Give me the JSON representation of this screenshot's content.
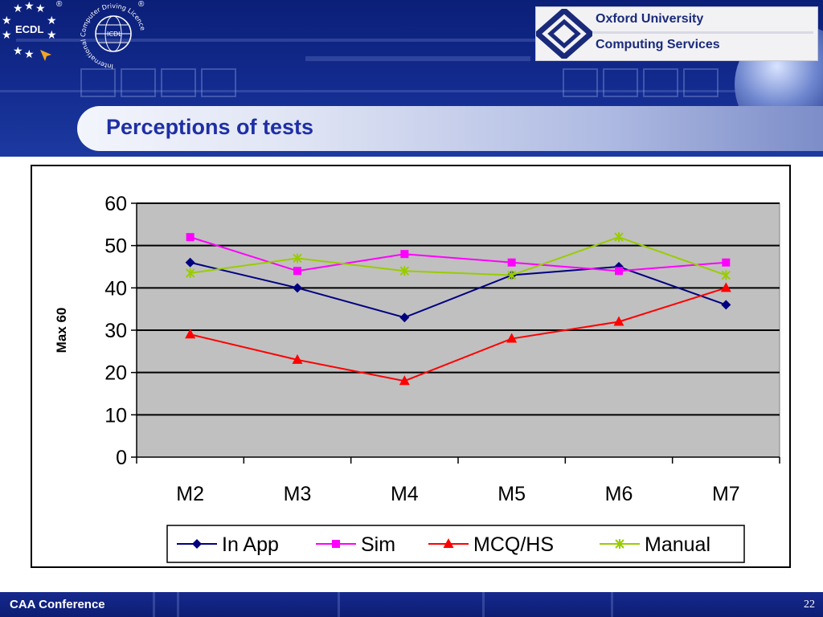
{
  "header": {
    "ecdl_logo_text": "ECDL",
    "registered_mark": "®",
    "icdl_ring_text": "International Computer Driving Licence",
    "icdl_center_text": "ICDL",
    "org_line1": "Oxford University",
    "org_line2": "Computing Services"
  },
  "slide": {
    "title": "Perceptions of tests"
  },
  "footer": {
    "conference": "CAA Conference",
    "page_number": "22"
  },
  "chart_data": {
    "type": "line",
    "categories": [
      "M2",
      "M3",
      "M4",
      "M5",
      "M6",
      "M7"
    ],
    "ylabel": "Max 60",
    "xlabel": "",
    "title": "",
    "ylim": [
      0,
      60
    ],
    "yticks": [
      0,
      10,
      20,
      30,
      40,
      50,
      60
    ],
    "grid": true,
    "plot_background": "#c0c0c0",
    "legend_position": "bottom",
    "series": [
      {
        "name": "In App",
        "marker": "diamond",
        "color": "#000080",
        "values": [
          46,
          40,
          33,
          43,
          45,
          36
        ]
      },
      {
        "name": "Sim",
        "marker": "square",
        "color": "#ff00ff",
        "values": [
          52,
          44,
          48,
          46,
          44,
          46
        ]
      },
      {
        "name": "MCQ/HS",
        "marker": "triangle",
        "color": "#ff0000",
        "values": [
          29,
          23,
          18,
          28,
          32,
          40
        ]
      },
      {
        "name": "Manual",
        "marker": "star",
        "color": "#99cc00",
        "values": [
          43.5,
          47,
          44,
          43,
          52,
          43
        ]
      }
    ]
  }
}
